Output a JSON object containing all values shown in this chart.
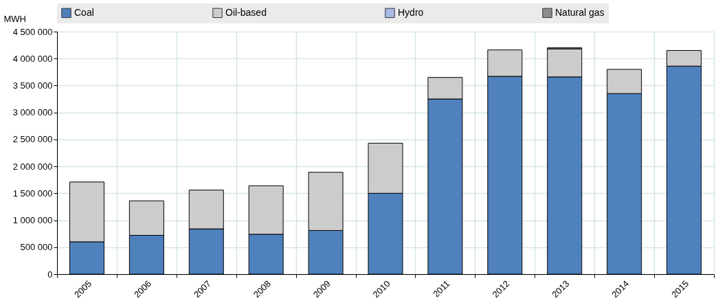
{
  "chart_data": {
    "type": "bar",
    "stacked": true,
    "ylabel": "MWH",
    "categories": [
      "2005",
      "2006",
      "2007",
      "2008",
      "2009",
      "2010",
      "2011",
      "2012",
      "2013",
      "2014",
      "2015"
    ],
    "series": [
      {
        "name": "Coal",
        "color": "#4f81bd",
        "values": [
          600000,
          720000,
          840000,
          740000,
          810000,
          1500000,
          3250000,
          3670000,
          3660000,
          3350000,
          3860000
        ]
      },
      {
        "name": "Oil-based",
        "color": "#cccccc",
        "values": [
          1110000,
          640000,
          720000,
          900000,
          1080000,
          930000,
          400000,
          490000,
          520000,
          450000,
          290000
        ]
      },
      {
        "name": "Hydro",
        "color": "#a9b9e6",
        "values": [
          null,
          null,
          null,
          null,
          null,
          null,
          null,
          null,
          null,
          null,
          null
        ]
      },
      {
        "name": "Natural gas",
        "color": "#8c8c8c",
        "values": [
          null,
          null,
          null,
          null,
          null,
          null,
          null,
          null,
          20000,
          null,
          null
        ]
      }
    ],
    "ylim": [
      0,
      4500000
    ],
    "yticks": [
      {
        "value": 0,
        "label": "0"
      },
      {
        "value": 500000,
        "label": "500 000"
      },
      {
        "value": 1000000,
        "label": "1 000 000"
      },
      {
        "value": 1500000,
        "label": "1 500 000"
      },
      {
        "value": 2000000,
        "label": "2 000 000"
      },
      {
        "value": 2500000,
        "label": "2 500 000"
      },
      {
        "value": 3000000,
        "label": "3 000 000"
      },
      {
        "value": 3500000,
        "label": "3 500 000"
      },
      {
        "value": 4000000,
        "label": "4 000 000"
      },
      {
        "value": 4500000,
        "label": "4 500 000"
      }
    ],
    "grid": true,
    "legend": "top"
  }
}
